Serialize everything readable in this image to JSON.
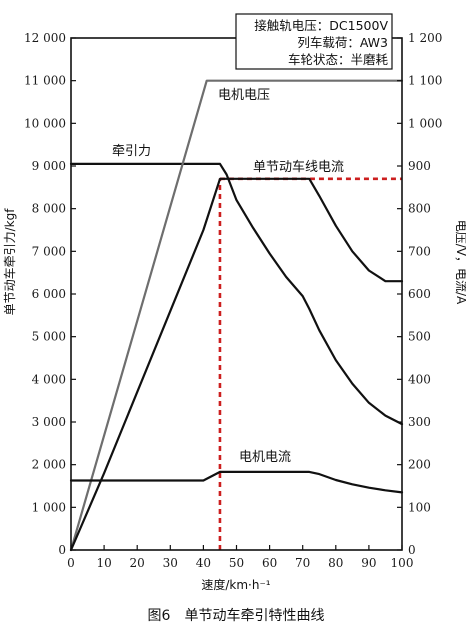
{
  "chart_data": {
    "type": "line",
    "caption": "图6　单节动车牵引特性曲线",
    "xlabel": "速度/km·h⁻¹",
    "ylabel": "单节动车牵引力/kgf",
    "y2label": "电压/V，电流/A",
    "xlim": [
      0,
      100
    ],
    "ylim": [
      0,
      12000
    ],
    "y2lim": [
      0,
      1200
    ],
    "x_ticks": [
      "0",
      "10",
      "20",
      "30",
      "40",
      "50",
      "60",
      "70",
      "80",
      "90",
      "100"
    ],
    "y_ticks": [
      "0",
      "1 000",
      "2 000",
      "3 000",
      "4 000",
      "5 000",
      "6 000",
      "7 000",
      "8 000",
      "9 000",
      "10 000",
      "11 000",
      "12 000"
    ],
    "y2_ticks": [
      "0",
      "100",
      "200",
      "300",
      "400",
      "500",
      "600",
      "700",
      "800",
      "900",
      "1 000",
      "1 100",
      "1 200"
    ],
    "legend_box": [
      "接触轨电压：DC1500V",
      "列车载荷：AW3",
      "车轮状态：半磨耗"
    ],
    "series": [
      {
        "name": "牵引力",
        "axis": "left",
        "color": "#111111",
        "x": [
          0,
          45,
          47,
          50,
          55,
          60,
          65,
          70,
          72,
          75,
          80,
          85,
          90,
          95,
          100
        ],
        "y": [
          9050,
          9050,
          8800,
          8200,
          7550,
          6950,
          6400,
          5950,
          5650,
          5150,
          4450,
          3900,
          3450,
          3150,
          2950
        ]
      },
      {
        "name": "电机电压",
        "axis": "right",
        "color": "#6e6e6e",
        "x": [
          0,
          41,
          100
        ],
        "y": [
          0,
          1100,
          1100
        ]
      },
      {
        "name": "单节动车线电流",
        "axis": "right",
        "color": "#111111",
        "x": [
          0,
          10,
          20,
          30,
          40,
          45,
          72,
          75,
          80,
          85,
          90,
          95,
          100
        ],
        "y": [
          0,
          180,
          370,
          560,
          750,
          870,
          870,
          830,
          760,
          700,
          655,
          630,
          630
        ]
      },
      {
        "name": "电机电流",
        "axis": "right",
        "color": "#111111",
        "x": [
          0,
          40,
          45,
          72,
          75,
          80,
          85,
          90,
          95,
          100
        ],
        "y": [
          163,
          163,
          183,
          183,
          178,
          164,
          154,
          146,
          140,
          135
        ]
      },
      {
        "name": "",
        "axis": "right",
        "color": "#ffffff",
        "x": [],
        "y": []
      }
    ],
    "reference_lines": [
      {
        "type": "vertical",
        "x": 45,
        "from": 0,
        "to": 870,
        "axis": "right",
        "color": "#cc1f1f",
        "style": "dashed"
      },
      {
        "type": "horizontal",
        "y": 870,
        "from": 45,
        "to": 100,
        "axis": "right",
        "color": "#cc1f1f",
        "style": "dashed"
      }
    ],
    "line_labels": [
      {
        "series": "电机电压",
        "text": "电机电压"
      },
      {
        "series": "牵引力",
        "text": "牵引力"
      },
      {
        "series": "单节动车线电流",
        "text": "单节动车线电流"
      },
      {
        "series": "电机电流",
        "text": "电机电流"
      }
    ]
  }
}
